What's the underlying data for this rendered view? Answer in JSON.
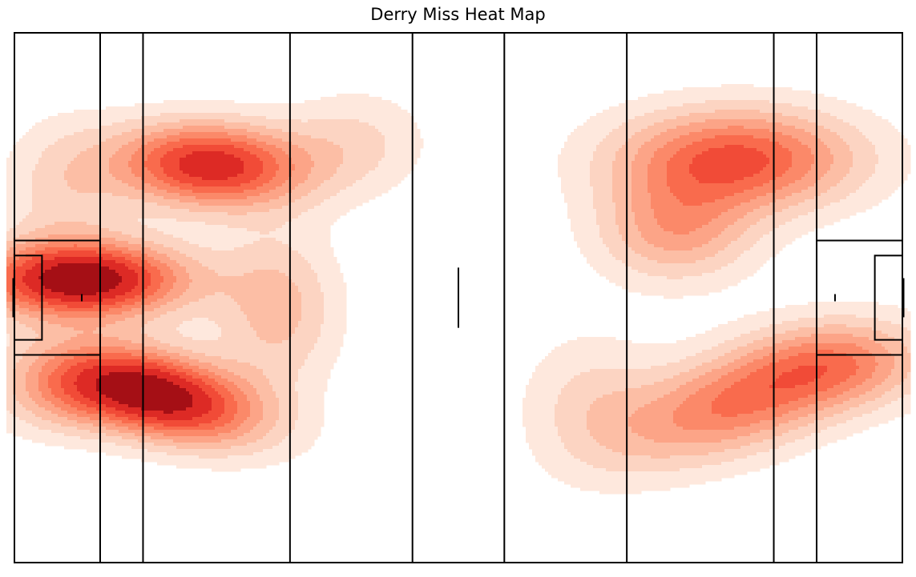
{
  "chart_data": {
    "type": "heatmap",
    "title": "Derry Miss Heat Map",
    "xlabel": "",
    "ylabel": "",
    "xlim": [
      0,
      145
    ],
    "ylim": [
      0,
      88
    ],
    "grid": false,
    "legend": "none",
    "colormap": "Reds",
    "pitch": {
      "length_m": 145,
      "width_m": 88,
      "lines_m": [
        14,
        21,
        45,
        65,
        80,
        100,
        124,
        131
      ],
      "large_rect": {
        "depth_m": 14,
        "width_m": 19
      },
      "small_rect": {
        "depth_m": 4.5,
        "width_m": 14
      },
      "goal_width_m": 6.5,
      "halfway_mark_m": 10,
      "penalty_spot_m": 11
    },
    "contour_levels": [
      "#fee8dd",
      "#fcd4c2",
      "#fcbea5",
      "#fca487",
      "#fb8969",
      "#f96b4d",
      "#f14b37",
      "#dd2a25",
      "#a50f15"
    ],
    "density_peaks": [
      {
        "x": 11,
        "y": 47,
        "sx": 12,
        "sy": 4.5,
        "rot": 0,
        "w": 0.95
      },
      {
        "x": 23,
        "y": 28,
        "sx": 12,
        "sy": 5,
        "rot": -14,
        "w": 0.95
      },
      {
        "x": 32,
        "y": 66,
        "sx": 11,
        "sy": 5,
        "rot": -3,
        "w": 0.8
      },
      {
        "x": 43,
        "y": 42,
        "sx": 7,
        "sy": 9,
        "rot": 0,
        "w": 0.3
      },
      {
        "x": 7,
        "y": 28,
        "sx": 8,
        "sy": 5,
        "rot": 0,
        "w": 0.25
      },
      {
        "x": 8,
        "y": 62,
        "sx": 7,
        "sy": 8,
        "rot": 0,
        "w": 0.2
      },
      {
        "x": 56,
        "y": 70,
        "sx": 8,
        "sy": 6,
        "rot": 0,
        "w": 0.18
      },
      {
        "x": 118,
        "y": 67,
        "sx": 14,
        "sy": 6,
        "rot": 0,
        "w": 0.65
      },
      {
        "x": 108,
        "y": 55,
        "sx": 9,
        "sy": 6,
        "rot": 0,
        "w": 0.38
      },
      {
        "x": 119,
        "y": 27,
        "sx": 15,
        "sy": 6,
        "rot": 18,
        "w": 0.55
      },
      {
        "x": 136,
        "y": 33,
        "sx": 10,
        "sy": 5,
        "rot": 0,
        "w": 0.3
      },
      {
        "x": 94,
        "y": 27,
        "sx": 8,
        "sy": 8,
        "rot": 0,
        "w": 0.18
      }
    ]
  }
}
